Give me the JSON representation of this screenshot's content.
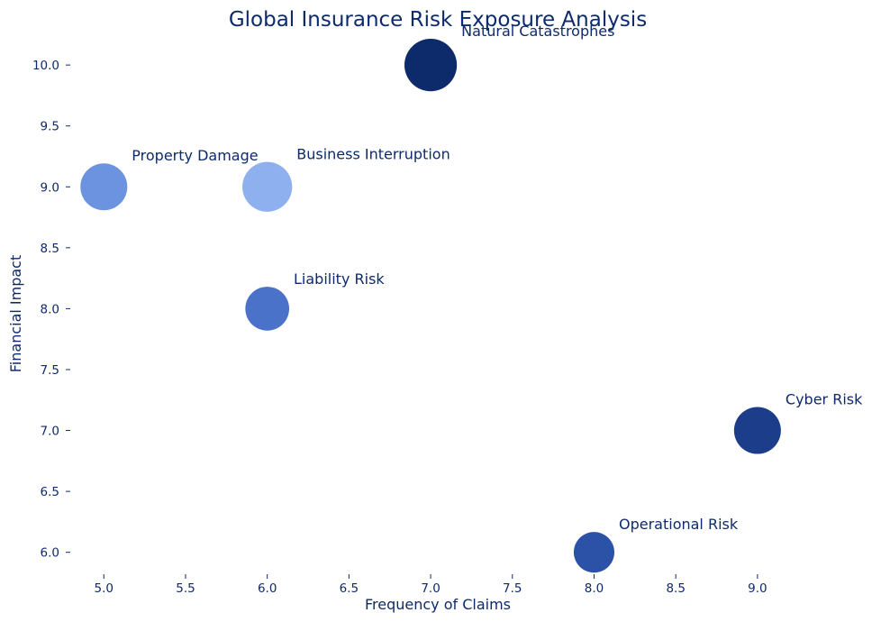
{
  "chart_data": {
    "type": "scatter",
    "title": "Global Insurance Risk Exposure Analysis",
    "xlabel": "Frequency of Claims",
    "ylabel": "Financial Impact",
    "xlim": [
      4.8,
      9.8
    ],
    "ylim": [
      5.82,
      10.26
    ],
    "x_ticks": [
      5.0,
      5.5,
      6.0,
      6.5,
      7.0,
      7.5,
      8.0,
      8.5,
      9.0
    ],
    "x_tick_labels": [
      "5.0",
      "5.5",
      "6.0",
      "6.5",
      "7.0",
      "7.5",
      "8.0",
      "8.5",
      "9.0"
    ],
    "y_ticks": [
      6.0,
      6.5,
      7.0,
      7.5,
      8.0,
      8.5,
      9.0,
      9.5,
      10.0
    ],
    "y_tick_labels": [
      "6.0",
      "6.5",
      "7.0",
      "7.5",
      "8.0",
      "8.5",
      "9.0",
      "9.5",
      "10.0"
    ],
    "grid": false,
    "points": [
      {
        "label": "Natural Catastrophes",
        "x": 7,
        "y": 10,
        "size": 10,
        "color": "#0d2a6b"
      },
      {
        "label": "Property Damage",
        "x": 5,
        "y": 9,
        "size": 8,
        "color": "#6b93e0"
      },
      {
        "label": "Business Interruption",
        "x": 6,
        "y": 9,
        "size": 9,
        "color": "#8fb0ef"
      },
      {
        "label": "Liability Risk",
        "x": 6,
        "y": 8,
        "size": 7,
        "color": "#4a72c9"
      },
      {
        "label": "Cyber Risk",
        "x": 9,
        "y": 7,
        "size": 8,
        "color": "#1c3d8a"
      },
      {
        "label": "Operational Risk",
        "x": 8,
        "y": 6,
        "size": 6,
        "color": "#2b52a6"
      }
    ]
  }
}
